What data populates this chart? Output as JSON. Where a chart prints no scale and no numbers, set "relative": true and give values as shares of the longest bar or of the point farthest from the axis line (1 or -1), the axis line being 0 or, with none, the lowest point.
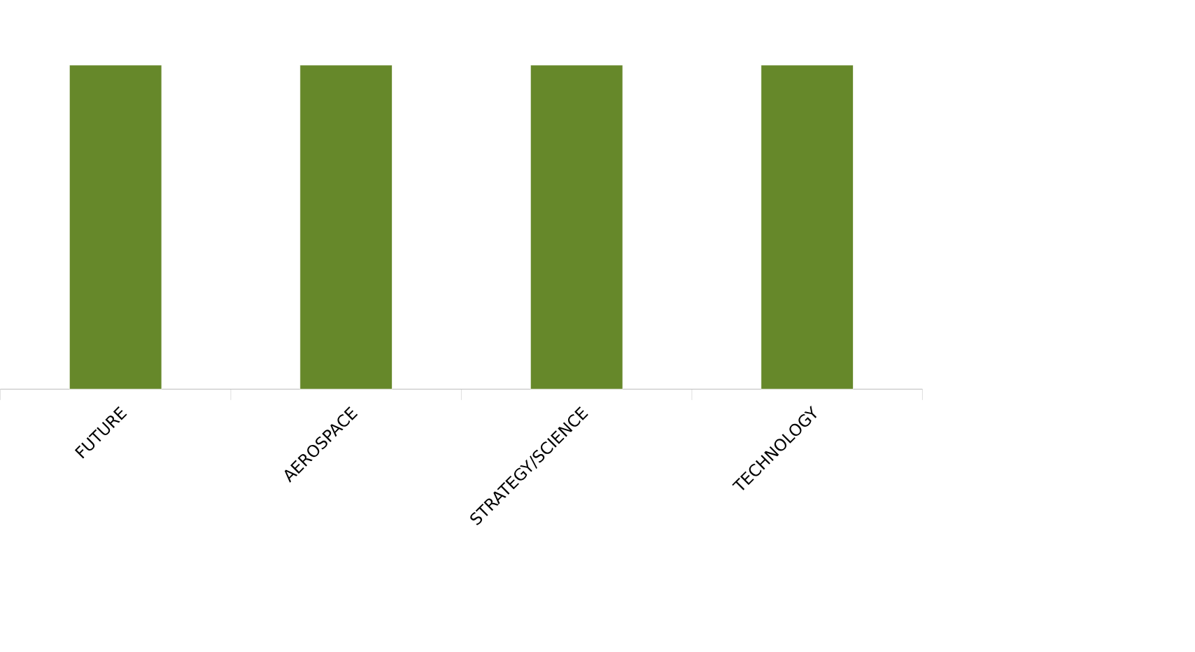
{
  "chart_data": {
    "type": "bar",
    "relative": true,
    "color": "#66882a",
    "categories": [
      "FUTURE",
      "AEROSPACE",
      "STRATEGY/SCIENCE",
      "TECHNOLOGY"
    ],
    "values": [
      1,
      1,
      1,
      1
    ]
  }
}
